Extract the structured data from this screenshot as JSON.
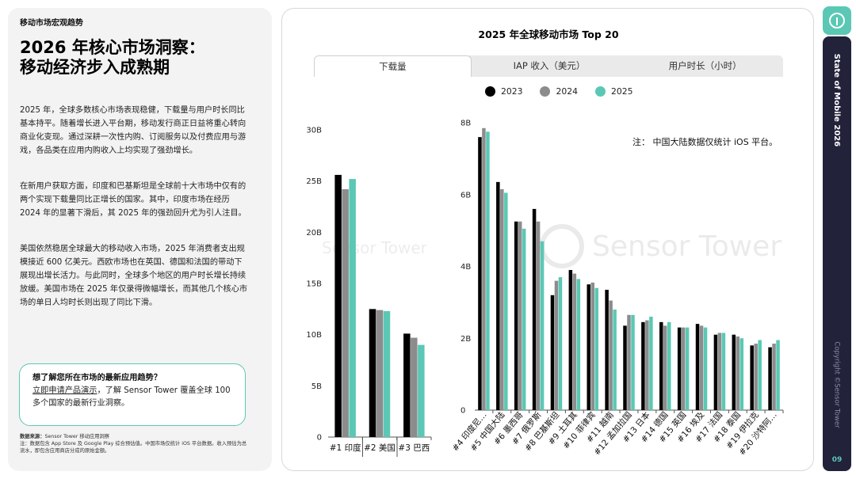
{
  "left": {
    "section_label": "移动市场宏观趋势",
    "headline_line1": "2026 年核心市场洞察：",
    "headline_line2": "移动经济步入成熟期",
    "para1": "2025 年，全球多数核心市场表现稳健，下载量与用户时长同比基本持平。随着增长进入平台期，移动发行商正日益将重心转向商业化变现。通过深耕一次性内购、订阅服务以及付费应用与游戏，各品类在应用内购收入上均实现了强劲增长。",
    "para2": "在新用户获取方面，印度和巴基斯坦是全球前十大市场中仅有的两个实现下载量同比正增长的国家。其中，印度市场在经历 2024 年的显著下滑后，其 2025 年的强劲回升尤为引人注目。",
    "para3": "美国依然稳居全球最大的移动收入市场，2025 年消费者支出规模接近 600 亿美元。西欧市场也在英国、德国和法国的带动下展现出增长活力。与此同时，全球多个地区的用户时长增长持续放缓。美国市场在 2025 年仅录得微幅增长，而其他几个核心市场的单日人均时长则出现了同比下滑。",
    "cta_title": "想了解您所在市场的最新应用趋势？",
    "cta_link": "立即申请产品演示",
    "cta_rest": "，了解 Sensor Tower 覆盖全球 100 多个国家的最新行业洞察。",
    "footnote_label": "数据来源：",
    "footnote_source": "Sensor Tower 移动应用洞察",
    "footnote_note": "注：数据包含 App Store 及 Google Play 综合预估值。中国市场仅统计 iOS 平台数据。收入预估为总流水，即包含应用商店分成的原始金额。"
  },
  "chart_card": {
    "title": "2025 年全球移动市场 Top 20",
    "tabs": [
      "下载量",
      "IAP 收入（美元）",
      "用户时长（小时）"
    ],
    "active_tab": 0,
    "note": "注：  中国大陆数据仅统计 iOS 平台。",
    "watermark": "Sensor Tower"
  },
  "sidebar": {
    "title": "State of Mobile 2026",
    "copyright": "Copyright ©Sensor Tower",
    "page": "09"
  },
  "colors": {
    "s2023": "#000000",
    "s2024": "#8c8c8c",
    "s2025": "#5ac8b4",
    "accent": "#5ac8b4",
    "sidebar_bg": "#22223a"
  },
  "chart_data": [
    {
      "type": "bar",
      "categories": [
        "#1 印度",
        "#2 美国",
        "#3 巴西"
      ],
      "series": [
        {
          "name": "2023",
          "values": [
            25.6,
            12.5,
            10.1
          ]
        },
        {
          "name": "2024",
          "values": [
            24.2,
            12.4,
            9.7
          ]
        },
        {
          "name": "2025",
          "values": [
            25.2,
            12.3,
            9.0
          ]
        }
      ],
      "yticks": [
        "0",
        "5B",
        "10B",
        "15B",
        "20B",
        "25B",
        "30B"
      ],
      "ylim": [
        0,
        30
      ],
      "legend": "top-center"
    },
    {
      "type": "bar",
      "categories": [
        "#4 印度尼…",
        "#5 中国大陆",
        "#6 墨西哥",
        "#7 俄罗斯",
        "#8 巴基斯坦",
        "#9 土耳其",
        "#10 菲律宾",
        "#11 越南",
        "#12 孟加拉国",
        "#13 日本",
        "#14 德国",
        "#15 英国",
        "#16 埃及",
        "#17 法国",
        "#18 泰国",
        "#19 伊拉克",
        "#20 沙特阿…"
      ],
      "series": [
        {
          "name": "2023",
          "values": [
            7.6,
            6.35,
            5.25,
            5.6,
            3.2,
            3.9,
            3.5,
            3.35,
            2.35,
            2.45,
            2.45,
            2.3,
            2.4,
            2.1,
            2.1,
            1.8,
            1.75
          ]
        },
        {
          "name": "2024",
          "values": [
            7.85,
            6.15,
            5.25,
            5.25,
            3.6,
            3.8,
            3.55,
            3.05,
            2.65,
            2.5,
            2.35,
            2.3,
            2.35,
            2.15,
            2.05,
            1.85,
            1.85
          ]
        },
        {
          "name": "2025",
          "values": [
            7.75,
            6.05,
            5.05,
            4.7,
            3.7,
            3.65,
            3.4,
            2.8,
            2.65,
            2.6,
            2.45,
            2.3,
            2.3,
            2.15,
            2.0,
            1.95,
            1.95
          ]
        }
      ],
      "yticks": [
        "0",
        "2B",
        "4B",
        "6B",
        "8B"
      ],
      "ylim": [
        0,
        8
      ]
    }
  ]
}
